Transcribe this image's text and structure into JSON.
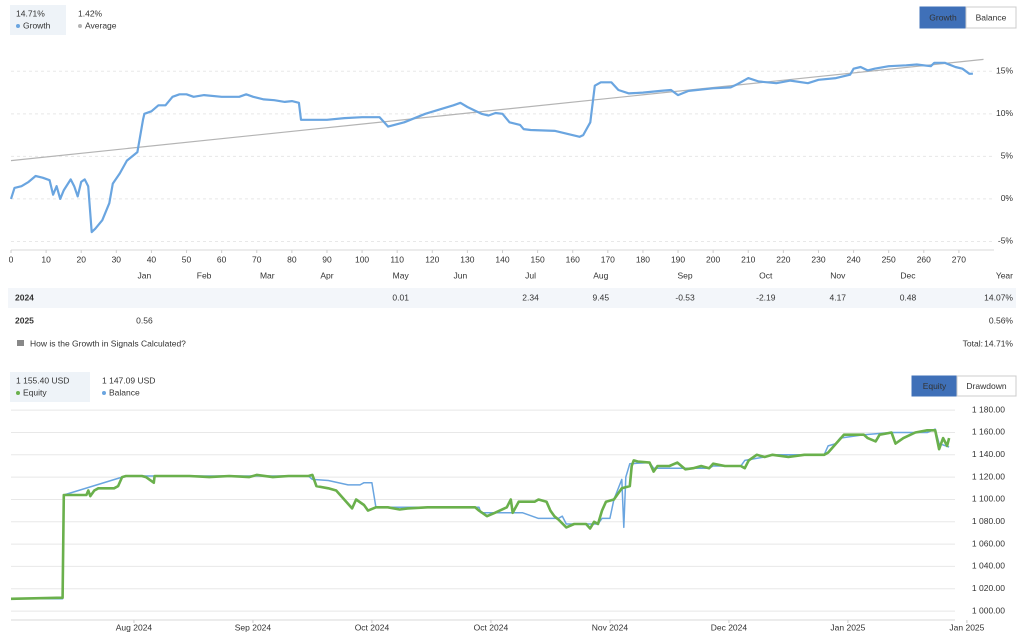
{
  "chart_data": [
    {
      "type": "line",
      "grid": true,
      "xlim": [
        0,
        280
      ],
      "ylim": [
        -6,
        17.5
      ],
      "xticks": [
        0,
        10,
        20,
        30,
        40,
        50,
        60,
        70,
        80,
        90,
        100,
        110,
        120,
        130,
        140,
        150,
        160,
        170,
        180,
        190,
        200,
        210,
        220,
        230,
        240,
        250,
        260,
        270
      ],
      "yticks": [
        {
          "value": -5,
          "label": "-5%"
        },
        {
          "value": 0,
          "label": "0%"
        },
        {
          "value": 5,
          "label": "5%"
        },
        {
          "value": 10,
          "label": "10%"
        },
        {
          "value": 15,
          "label": "15%"
        }
      ],
      "month_ticks": [
        {
          "value": 38,
          "label": "Jan"
        },
        {
          "value": 55,
          "label": "Feb"
        },
        {
          "value": 73,
          "label": "Mar"
        },
        {
          "value": 90,
          "label": "Apr"
        },
        {
          "value": 111,
          "label": "May"
        },
        {
          "value": 128,
          "label": "Jun"
        },
        {
          "value": 148,
          "label": "Jul"
        },
        {
          "value": 168,
          "label": "Aug"
        },
        {
          "value": 192,
          "label": "Sep"
        },
        {
          "value": 215,
          "label": "Oct"
        },
        {
          "value": 235.5,
          "label": "Nov"
        },
        {
          "value": 255.5,
          "label": "Dec"
        }
      ],
      "series": [
        {
          "name": "Growth",
          "color": "#6aa5e0",
          "x": [
            0,
            1,
            3,
            5,
            7,
            9,
            11,
            12,
            13,
            14,
            15,
            17,
            18,
            19,
            20,
            21,
            22,
            23,
            24,
            26,
            28,
            29,
            31,
            33,
            36,
            37.6,
            38,
            40,
            42,
            44,
            46,
            48,
            50,
            52,
            55,
            60,
            65,
            67,
            69,
            72,
            75,
            78,
            80,
            82,
            82.6,
            86,
            90,
            95,
            100,
            105,
            107.4,
            112,
            118,
            122,
            126,
            128,
            130,
            134,
            136,
            138,
            140,
            142,
            145,
            146,
            148,
            155,
            162,
            163,
            165,
            166.3,
            168,
            171,
            173,
            176,
            180,
            185,
            188,
            190,
            193,
            200,
            205,
            207,
            210,
            213,
            218,
            222,
            227,
            230,
            235,
            239,
            240,
            242,
            244,
            246,
            250,
            255,
            258,
            262,
            263,
            266,
            269,
            271,
            273,
            274
          ],
          "values": [
            0,
            1.3,
            1.5,
            2,
            2.7,
            2.5,
            2.2,
            0.5,
            1.5,
            0,
            1,
            2.3,
            1.5,
            0.3,
            2,
            2.3,
            1.5,
            -3.9,
            -3.5,
            -2.5,
            -0.5,
            1.8,
            3,
            4.5,
            5.5,
            9.3,
            10,
            10.3,
            11,
            11,
            12,
            12.3,
            12.3,
            12,
            12.2,
            12,
            12,
            12.3,
            12,
            11.7,
            11.6,
            11.4,
            11.5,
            11.3,
            9.3,
            9.3,
            9.3,
            9.5,
            9.6,
            9.6,
            8.5,
            9,
            10,
            10.5,
            11,
            11.3,
            10.8,
            10,
            9.8,
            10.1,
            10,
            9,
            8.7,
            8.2,
            8.1,
            8,
            7.3,
            7.5,
            9,
            13.3,
            13.7,
            13.7,
            12.8,
            12.4,
            12.5,
            12.7,
            12.8,
            12.2,
            12.7,
            13,
            13.1,
            13.5,
            14.2,
            13.8,
            13.6,
            13.9,
            13.6,
            14,
            14.2,
            14.6,
            15.3,
            15.5,
            15.1,
            15.3,
            15.6,
            15.7,
            15.8,
            15.6,
            16,
            16,
            15.5,
            15.3,
            14.7,
            14.71
          ]
        },
        {
          "name": "Average",
          "color": "#b4b4b4",
          "x": [
            0,
            277
          ],
          "values": [
            4.5,
            16.4
          ]
        }
      ]
    },
    {
      "type": "line",
      "grid": true,
      "xlim": [
        0,
        238
      ],
      "ylim": [
        992,
        1190
      ],
      "xticks": [
        {
          "value": 31,
          "label": "Aug 2024"
        },
        {
          "value": 61,
          "label": "Sep 2024"
        },
        {
          "value": 91,
          "label": "Oct 2024"
        },
        {
          "value": 121,
          "label": "Oct 2024"
        },
        {
          "value": 151,
          "label": "Nov 2024"
        },
        {
          "value": 181,
          "label": "Dec 2024"
        },
        {
          "value": 211,
          "label": "Jan 2025"
        },
        {
          "value": 241,
          "label": "Jan 2025"
        }
      ],
      "yticks": [
        {
          "value": 1000,
          "label": "1 000.00"
        },
        {
          "value": 1020,
          "label": "1 020.00"
        },
        {
          "value": 1040,
          "label": "1 040.00"
        },
        {
          "value": 1060,
          "label": "1 060.00"
        },
        {
          "value": 1080,
          "label": "1 080.00"
        },
        {
          "value": 1100,
          "label": "1 100.00"
        },
        {
          "value": 1120,
          "label": "1 120.00"
        },
        {
          "value": 1140,
          "label": "1 140.00"
        },
        {
          "value": 1160,
          "label": "1 160.00"
        },
        {
          "value": 1180,
          "label": "1 180.00"
        }
      ],
      "series": [
        {
          "name": "Equity",
          "color": "#6ab04c",
          "x": [
            0,
            13,
            13.3,
            19,
            19.5,
            20,
            21,
            22,
            26,
            27,
            28,
            29,
            33,
            34,
            36,
            36.2,
            45,
            50,
            55,
            60,
            62,
            66,
            70,
            75,
            76,
            77,
            80,
            82,
            84,
            86,
            87,
            89,
            90,
            92,
            95,
            98,
            100,
            105,
            110,
            115,
            117,
            118,
            120,
            122,
            125,
            126,
            126.5,
            128,
            132,
            133,
            135,
            136,
            137,
            138,
            140,
            142,
            145,
            146,
            147,
            148,
            149,
            150,
            152,
            154,
            156,
            156.5,
            157,
            158,
            161,
            162,
            163,
            166,
            168,
            170,
            172,
            174,
            176,
            177,
            180,
            184,
            185,
            186,
            188,
            190,
            192,
            196,
            200,
            205,
            206,
            208,
            210,
            215,
            216,
            218,
            219,
            222,
            223,
            225,
            228,
            231,
            233,
            234,
            235,
            236,
            236.5
          ],
          "values": [
            1011,
            1012,
            1104,
            1104,
            1108,
            1103,
            1108,
            1110,
            1110,
            1112,
            1120,
            1121,
            1121,
            1120,
            1115,
            1121,
            1121,
            1120,
            1121,
            1120,
            1122,
            1120,
            1121,
            1121,
            1122,
            1112,
            1110,
            1108,
            1100,
            1092,
            1100,
            1095,
            1090,
            1093,
            1093,
            1091,
            1092,
            1093,
            1093,
            1093,
            1093,
            1090,
            1085,
            1088,
            1093,
            1100,
            1088,
            1098,
            1098,
            1100,
            1098,
            1090,
            1085,
            1082,
            1075,
            1078,
            1078,
            1074,
            1080,
            1078,
            1090,
            1098,
            1100,
            1110,
            1112,
            1130,
            1135,
            1134,
            1133,
            1125,
            1130,
            1130,
            1133,
            1127,
            1128,
            1130,
            1128,
            1132,
            1130,
            1130,
            1128,
            1135,
            1140,
            1138,
            1140,
            1138,
            1140,
            1140,
            1142,
            1150,
            1158,
            1158,
            1155,
            1152,
            1158,
            1160,
            1150,
            1155,
            1160,
            1162,
            1162,
            1145,
            1155,
            1148,
            1155
          ]
        },
        {
          "name": "Balance",
          "color": "#6aa5e0",
          "x": [
            0,
            13,
            13.3,
            28,
            29,
            75,
            76,
            80,
            85,
            88,
            89,
            91,
            92,
            115,
            118,
            118.5,
            126,
            129,
            133,
            138,
            139,
            140,
            148,
            149,
            151,
            152,
            154,
            154.5,
            155,
            156,
            161,
            162,
            176,
            177,
            184,
            185,
            190,
            192,
            205,
            206,
            208,
            209,
            215,
            222,
            228,
            231,
            233,
            234,
            236.5
          ],
          "values": [
            1011,
            1011,
            1104,
            1120,
            1121,
            1121,
            1118,
            1117,
            1113,
            1113,
            1115,
            1115,
            1093,
            1093,
            1093,
            1088,
            1088,
            1088,
            1083,
            1083,
            1085,
            1078,
            1078,
            1083,
            1083,
            1100,
            1118,
            1075,
            1120,
            1132,
            1133,
            1128,
            1128,
            1130,
            1130,
            1135,
            1138,
            1140,
            1140,
            1148,
            1150,
            1155,
            1158,
            1160,
            1160,
            1160,
            1163,
            1150,
            1147
          ]
        }
      ]
    }
  ],
  "panels": [
    {
      "tabs": [
        "Growth",
        "Balance"
      ],
      "active_tab": "Growth",
      "stats": [
        {
          "value": "14.71%",
          "label": "Growth"
        },
        {
          "value": "1.42%",
          "label": "Average"
        }
      ]
    },
    {
      "tabs": [
        "Equity",
        "Drawdown"
      ],
      "active_tab": "Equity",
      "stats": [
        {
          "value": "1 155.40 USD",
          "label": "Equity"
        },
        {
          "value": "1 147.09 USD",
          "label": "Balance"
        }
      ]
    }
  ],
  "growth_table": {
    "year_header": "Year",
    "rows": [
      {
        "year": "2024",
        "cells": [
          null,
          null,
          null,
          null,
          "0.01",
          null,
          "2.34",
          "9.45",
          "-0.53",
          "-2.19",
          "4.17",
          "0.48"
        ],
        "total": "14.07%"
      },
      {
        "year": "2025",
        "cells": [
          "0.56",
          null,
          null,
          null,
          null,
          null,
          null,
          null,
          null,
          null,
          null,
          null
        ],
        "total": "0.56%"
      }
    ]
  },
  "growth_footer": {
    "link": "How is the Growth in Signals Calculated?",
    "total_label": "Total:",
    "total_value": "14.71%"
  }
}
